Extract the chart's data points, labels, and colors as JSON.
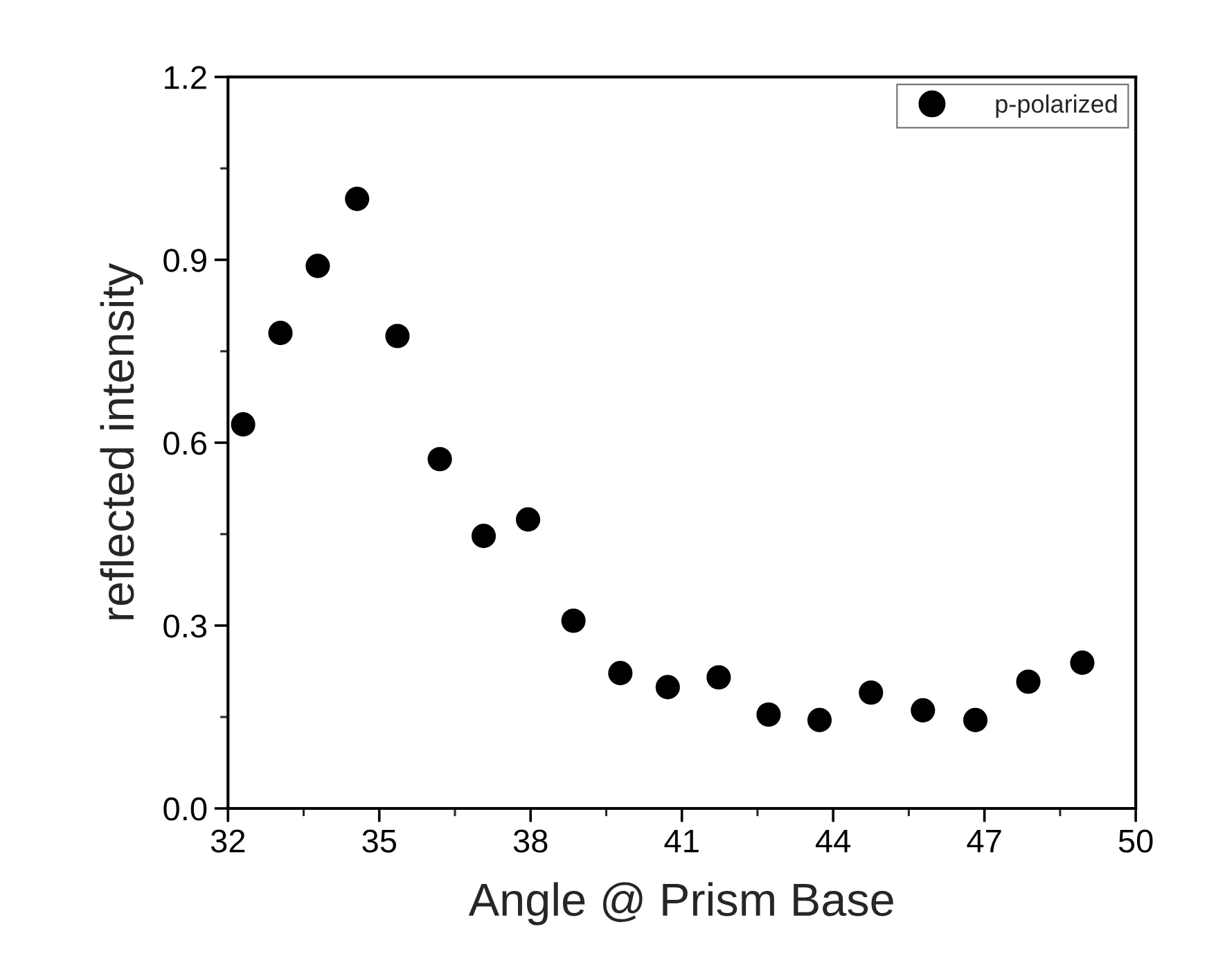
{
  "chart_data": {
    "type": "scatter",
    "xlabel": "Angle @ Prism Base",
    "ylabel": "reflected intensity",
    "x": [
      32.3,
      33.04,
      33.78,
      34.56,
      35.36,
      36.2,
      37.07,
      37.95,
      38.85,
      39.78,
      40.72,
      41.73,
      42.72,
      43.73,
      44.75,
      45.78,
      46.82,
      47.87,
      48.94
    ],
    "series": [
      {
        "name": "p-polarized",
        "color": "#000000",
        "values": [
          0.63,
          0.78,
          0.89,
          1.0,
          0.775,
          0.573,
          0.447,
          0.474,
          0.308,
          0.222,
          0.199,
          0.215,
          0.154,
          0.145,
          0.19,
          0.161,
          0.145,
          0.208,
          0.239
        ]
      }
    ],
    "xlim": [
      32,
      50
    ],
    "xticks": [
      32,
      35,
      38,
      41,
      44,
      47,
      50
    ],
    "ylim": [
      0,
      1.2
    ],
    "yticks": [
      {
        "value": 0,
        "label": "0.0"
      },
      {
        "value": 0.3,
        "label": "0.3"
      },
      {
        "value": 0.6,
        "label": "0.6"
      },
      {
        "value": 0.9,
        "label": "0.9"
      },
      {
        "value": 1.2,
        "label": "1.2"
      }
    ],
    "marker": "circle",
    "legend": "top right",
    "grid": false
  }
}
